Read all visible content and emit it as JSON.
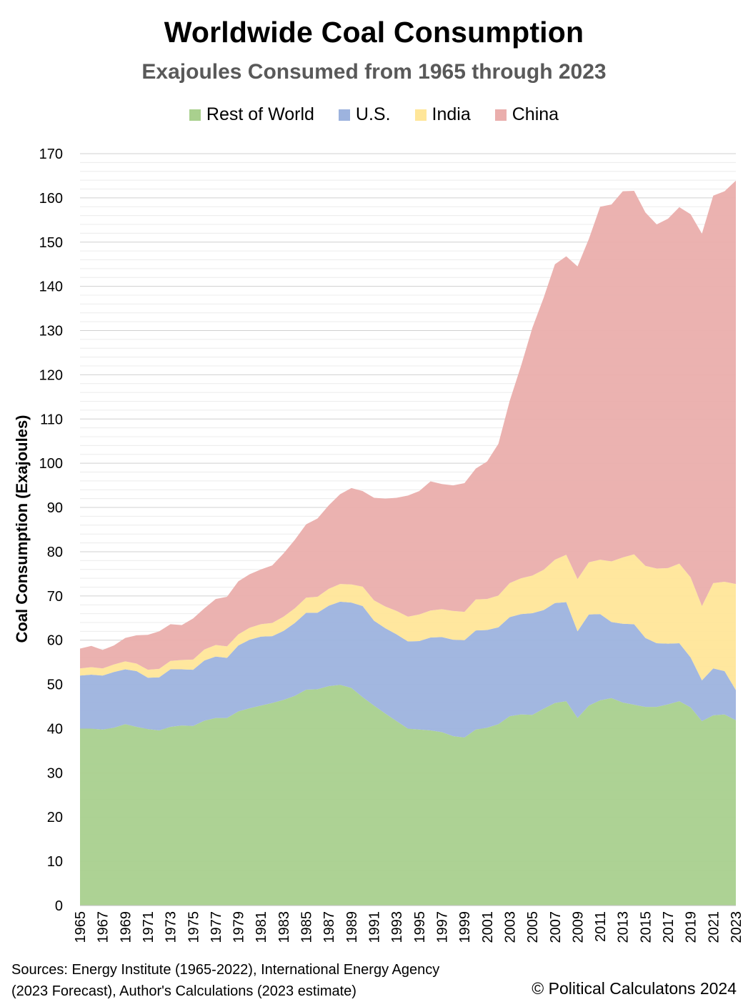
{
  "title": "Worldwide Coal Consumption",
  "subtitle": "Exajoules Consumed from 1965 through 2023",
  "sources": "Sources: Energy Institute (1965-2022), International Energy Agency (2023 Forecast), Author's Calculations (2023 estimate)",
  "copyright": "© Political Calculatons 2024",
  "chart_data": {
    "type": "area",
    "stacked": true,
    "title": "Worldwide Coal Consumption",
    "subtitle": "Exajoules Consumed from 1965 through 2023",
    "ylabel": "Coal Consumption (Exajoules)",
    "xlabel": "",
    "ylim": [
      0,
      170
    ],
    "y_ticks": [
      0,
      10,
      20,
      30,
      40,
      50,
      60,
      70,
      80,
      90,
      100,
      110,
      120,
      130,
      140,
      150,
      160,
      170
    ],
    "grid": true,
    "legend_position": "top",
    "x": [
      1965,
      1966,
      1967,
      1968,
      1969,
      1970,
      1971,
      1972,
      1973,
      1974,
      1975,
      1976,
      1977,
      1978,
      1979,
      1980,
      1981,
      1982,
      1983,
      1984,
      1985,
      1986,
      1987,
      1988,
      1989,
      1990,
      1991,
      1992,
      1993,
      1994,
      1995,
      1996,
      1997,
      1998,
      1999,
      2000,
      2001,
      2002,
      2003,
      2004,
      2005,
      2006,
      2007,
      2008,
      2009,
      2010,
      2011,
      2012,
      2013,
      2014,
      2015,
      2016,
      2017,
      2018,
      2019,
      2020,
      2021,
      2022,
      2023
    ],
    "x_tick_labels": [
      "1965",
      "1967",
      "1969",
      "1971",
      "1973",
      "1975",
      "1977",
      "1979",
      "1981",
      "1983",
      "1985",
      "1987",
      "1989",
      "1991",
      "1993",
      "1995",
      "1997",
      "1999",
      "2001",
      "2003",
      "2005",
      "2007",
      "2009",
      "2011",
      "2013",
      "2015",
      "2017",
      "2019",
      "2021",
      "2023"
    ],
    "series": [
      {
        "name": "Rest of World",
        "color": "#a9d08e",
        "values": [
          40.0,
          40.0,
          39.8,
          40.2,
          41.0,
          40.4,
          39.9,
          39.6,
          40.4,
          40.7,
          40.6,
          41.8,
          42.4,
          42.4,
          43.9,
          44.6,
          45.2,
          45.8,
          46.5,
          47.4,
          48.8,
          48.9,
          49.6,
          49.9,
          49.2,
          47.1,
          45.2,
          43.4,
          41.7,
          40.0,
          39.8,
          39.6,
          39.2,
          38.3,
          38.0,
          39.8,
          40.2,
          41.0,
          42.8,
          43.2,
          43.1,
          44.5,
          45.8,
          46.2,
          42.4,
          45.2,
          46.4,
          46.9,
          45.9,
          45.4,
          44.9,
          44.9,
          45.5,
          46.2,
          44.8,
          41.7,
          43.0,
          43.2,
          41.9
        ]
      },
      {
        "name": "U.S.",
        "color": "#9db3de",
        "values": [
          12.0,
          12.2,
          12.2,
          12.6,
          12.4,
          12.6,
          11.6,
          12.0,
          13.0,
          12.7,
          12.7,
          13.6,
          13.9,
          13.6,
          14.9,
          15.5,
          15.6,
          15.1,
          15.6,
          16.5,
          17.4,
          17.3,
          18.2,
          18.8,
          19.3,
          20.6,
          19.2,
          19.3,
          19.6,
          19.7,
          20.0,
          21.0,
          21.5,
          21.8,
          22.0,
          22.4,
          22.1,
          21.9,
          22.4,
          22.7,
          23.0,
          22.3,
          22.6,
          22.4,
          19.6,
          20.6,
          19.5,
          17.2,
          17.8,
          18.2,
          15.6,
          14.4,
          13.7,
          13.1,
          11.3,
          9.2,
          10.6,
          9.8,
          6.8
        ]
      },
      {
        "name": "India",
        "color": "#ffe699",
        "values": [
          1.6,
          1.7,
          1.6,
          1.7,
          1.8,
          1.7,
          1.8,
          1.9,
          1.9,
          2.1,
          2.3,
          2.5,
          2.6,
          2.6,
          2.5,
          2.7,
          2.8,
          3.0,
          3.2,
          3.3,
          3.4,
          3.6,
          3.8,
          4.0,
          4.1,
          4.4,
          4.6,
          4.9,
          5.3,
          5.6,
          6.0,
          6.1,
          6.3,
          6.5,
          6.4,
          7.0,
          7.0,
          7.2,
          7.7,
          8.1,
          8.5,
          9.1,
          9.8,
          10.7,
          11.8,
          11.8,
          12.3,
          13.7,
          15.0,
          15.8,
          16.3,
          16.9,
          17.1,
          18.0,
          18.1,
          16.8,
          19.3,
          20.2,
          24.0
        ]
      },
      {
        "name": "China",
        "color": "#eaaeac",
        "values": [
          4.5,
          4.8,
          4.2,
          4.3,
          5.3,
          6.4,
          7.9,
          8.5,
          8.3,
          7.9,
          9.3,
          9.3,
          10.4,
          11.2,
          12.0,
          12.1,
          12.4,
          13.0,
          14.3,
          15.5,
          16.6,
          17.7,
          18.9,
          20.3,
          21.8,
          21.6,
          23.2,
          24.4,
          25.6,
          27.4,
          27.9,
          29.2,
          28.3,
          28.4,
          29.1,
          29.6,
          31.1,
          34.3,
          41.2,
          48.0,
          56.0,
          61.5,
          66.8,
          67.5,
          70.7,
          73.1,
          79.8,
          80.7,
          82.8,
          82.2,
          79.9,
          77.8,
          79.0,
          80.6,
          82.1,
          84.2,
          87.6,
          88.3,
          91.2
        ]
      }
    ]
  }
}
